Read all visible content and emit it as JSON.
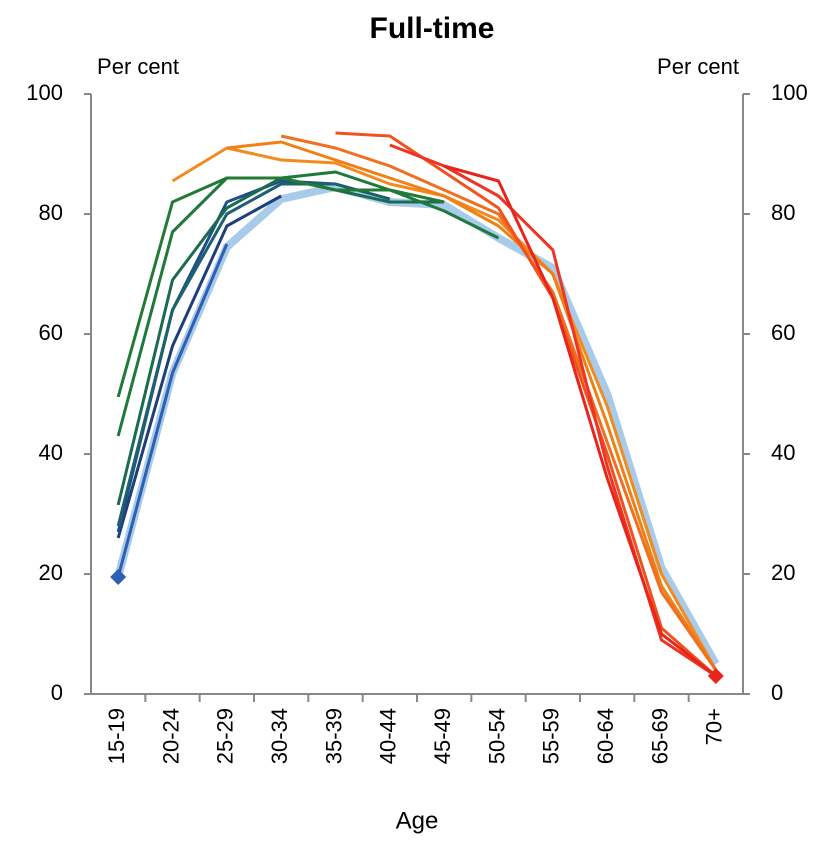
{
  "chart_data": {
    "type": "line",
    "title": "Full-time",
    "y_label_left": "Per cent",
    "y_label_right": "Per cent",
    "x_label": "Age",
    "categories": [
      "15-19",
      "20-24",
      "25-29",
      "30-34",
      "35-39",
      "40-44",
      "45-49",
      "50-54",
      "55-59",
      "60-64",
      "65-69",
      "70+"
    ],
    "ylim": [
      0,
      100
    ],
    "yticks": [
      0,
      20,
      40,
      60,
      80,
      100
    ],
    "grid": false,
    "series": [
      {
        "color": "#a9cbea",
        "width": 8,
        "values": [
          19.5,
          53.5,
          74.5,
          82.5,
          84.5,
          82,
          81.5,
          76,
          71,
          50,
          21,
          5
        ]
      },
      {
        "color": "#2f5fb3",
        "width": 3,
        "marker": "diamond-start",
        "values": [
          19.5,
          53.5,
          75,
          null,
          null,
          null,
          null,
          null,
          null,
          null,
          null,
          null
        ]
      },
      {
        "color": "#1f3f7a",
        "width": 3,
        "values": [
          26,
          58,
          78,
          83,
          null,
          null,
          null,
          null,
          null,
          null,
          null,
          null
        ]
      },
      {
        "color": "#1e4f8a",
        "width": 3,
        "values": [
          27,
          64,
          82,
          85.5,
          85,
          null,
          null,
          null,
          null,
          null,
          null,
          null
        ]
      },
      {
        "color": "#1d6070",
        "width": 3,
        "values": [
          28,
          64,
          80,
          85,
          85,
          82.5,
          null,
          null,
          null,
          null,
          null,
          null
        ]
      },
      {
        "color": "#1a6b50",
        "width": 3,
        "values": [
          31.5,
          69,
          81,
          86,
          84,
          82,
          82,
          null,
          null,
          null,
          null,
          null
        ]
      },
      {
        "color": "#1e7a3c",
        "width": 3,
        "values": [
          43,
          77,
          86,
          86,
          87,
          84,
          80.5,
          76,
          null,
          null,
          null,
          null
        ]
      },
      {
        "color": "#237a34",
        "width": 3,
        "values": [
          49.5,
          82,
          86,
          86,
          84,
          84,
          82,
          null,
          null,
          null,
          null,
          null
        ]
      },
      {
        "color": "#f28a1e",
        "width": 3,
        "values": [
          null,
          85.5,
          91,
          89,
          88.5,
          85,
          83,
          79,
          70,
          48,
          20,
          4
        ]
      },
      {
        "color": "#f07f14",
        "width": 3,
        "values": [
          null,
          null,
          91,
          92,
          89,
          86,
          83,
          78,
          70,
          45,
          18,
          4
        ]
      },
      {
        "color": "#ef7020",
        "width": 3,
        "values": [
          null,
          null,
          null,
          93,
          91,
          88,
          84,
          80,
          67,
          42,
          17,
          4
        ]
      },
      {
        "color": "#f0521e",
        "width": 3,
        "values": [
          null,
          null,
          null,
          null,
          93.5,
          93,
          87,
          81,
          66,
          40,
          11,
          3
        ]
      },
      {
        "color": "#ee3524",
        "width": 3,
        "values": [
          null,
          null,
          null,
          null,
          null,
          91.5,
          88,
          83,
          74,
          38,
          9,
          3
        ]
      },
      {
        "color": "#e8251c",
        "width": 3,
        "marker": "diamond-end",
        "values": [
          null,
          null,
          null,
          null,
          null,
          null,
          88,
          85.5,
          66,
          36,
          10,
          3
        ]
      }
    ]
  }
}
